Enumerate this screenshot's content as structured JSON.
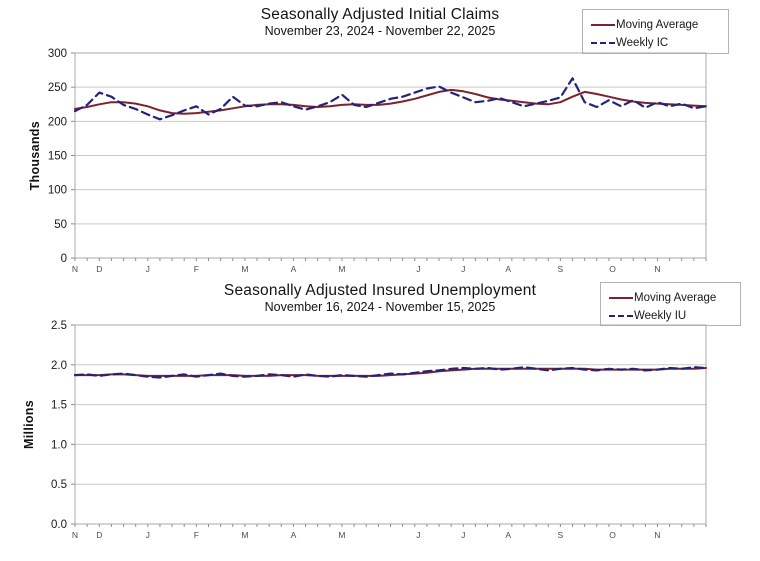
{
  "page": {
    "background": "#ffffff"
  },
  "colors": {
    "moving_average_line": "#7b232d",
    "weekly_line": "#23237d",
    "gridline": "#c9c9c9",
    "plot_border": "#a8a8a8",
    "tick": "#8c8c8c",
    "tick_label": "#1a1a1a",
    "month_label": "#4d4d4d"
  },
  "chart_data": [
    {
      "type": "line",
      "title": "Seasonally Adjusted Initial Claims",
      "subtitle": "November 23, 2024 - November 22, 2025",
      "ylabel": "Thousands",
      "ylim": [
        0,
        300
      ],
      "grid": "horizontal",
      "legend_position": "top-right",
      "yticks": [
        {
          "value": 0,
          "label": "0"
        },
        {
          "value": 50,
          "label": "50"
        },
        {
          "value": 100,
          "label": "100"
        },
        {
          "value": 150,
          "label": "150"
        },
        {
          "value": 200,
          "label": "200"
        },
        {
          "value": 250,
          "label": "250"
        },
        {
          "value": 300,
          "label": "300"
        }
      ],
      "month_labels": [
        {
          "label": "N",
          "week": 0
        },
        {
          "label": "D",
          "week": 2
        },
        {
          "label": "J",
          "week": 6
        },
        {
          "label": "F",
          "week": 10
        },
        {
          "label": "M",
          "week": 14
        },
        {
          "label": "A",
          "week": 18
        },
        {
          "label": "M",
          "week": 22
        },
        {
          "label": "J",
          "week": 28.3
        },
        {
          "label": "J",
          "week": 32
        },
        {
          "label": "A",
          "week": 35.7
        },
        {
          "label": "S",
          "week": 40
        },
        {
          "label": "O",
          "week": 44.3
        },
        {
          "label": "N",
          "week": 48
        }
      ],
      "legend": [
        {
          "label": "Moving Average",
          "style": "solid",
          "color": "#7b232d"
        },
        {
          "label": "Weekly IC",
          "style": "dashed",
          "color": "#23237d"
        }
      ],
      "series": [
        {
          "name": "Moving Average",
          "style": "solid",
          "color": "#7b232d",
          "values": [
            218,
            221,
            225,
            228,
            228,
            226,
            222,
            216,
            212,
            211,
            212,
            214,
            216,
            219,
            222,
            224,
            225,
            225,
            224,
            222,
            221,
            222,
            224,
            225,
            224,
            224,
            226,
            229,
            233,
            238,
            243,
            246,
            244,
            240,
            235,
            232,
            230,
            228,
            226,
            225,
            228,
            236,
            243,
            240,
            236,
            232,
            229,
            227,
            226,
            225,
            224,
            223,
            222
          ]
        },
        {
          "name": "Weekly IC",
          "style": "dashed",
          "color": "#23237d",
          "values": [
            215,
            224,
            242,
            236,
            224,
            218,
            210,
            203,
            209,
            216,
            222,
            210,
            218,
            236,
            223,
            222,
            226,
            228,
            222,
            217,
            222,
            228,
            239,
            224,
            221,
            227,
            233,
            236,
            242,
            248,
            251,
            242,
            235,
            228,
            230,
            234,
            228,
            222,
            226,
            230,
            235,
            263,
            228,
            221,
            231,
            222,
            231,
            220,
            228,
            222,
            226,
            219,
            222
          ]
        }
      ]
    },
    {
      "type": "line",
      "title": "Seasonally Adjusted Insured Unemployment",
      "subtitle": "November 16, 2024 - November 15, 2025",
      "ylabel": "Millions",
      "ylim": [
        0,
        2.5
      ],
      "grid": "horizontal",
      "legend_position": "top-right",
      "yticks": [
        {
          "value": 0,
          "label": "0.0"
        },
        {
          "value": 0.5,
          "label": "0.5"
        },
        {
          "value": 1.0,
          "label": "1.0"
        },
        {
          "value": 1.5,
          "label": "1.5"
        },
        {
          "value": 2.0,
          "label": "2.0"
        },
        {
          "value": 2.5,
          "label": "2.5"
        }
      ],
      "month_labels": [
        {
          "label": "N",
          "week": 0
        },
        {
          "label": "D",
          "week": 2
        },
        {
          "label": "J",
          "week": 6
        },
        {
          "label": "F",
          "week": 10
        },
        {
          "label": "M",
          "week": 14
        },
        {
          "label": "A",
          "week": 18
        },
        {
          "label": "M",
          "week": 22
        },
        {
          "label": "J",
          "week": 28.3
        },
        {
          "label": "J",
          "week": 32
        },
        {
          "label": "A",
          "week": 35.7
        },
        {
          "label": "S",
          "week": 40
        },
        {
          "label": "O",
          "week": 44.3
        },
        {
          "label": "N",
          "week": 48
        }
      ],
      "legend": [
        {
          "label": "Moving Average",
          "style": "solid",
          "color": "#7b232d"
        },
        {
          "label": "Weekly IU",
          "style": "dashed",
          "color": "#23237d"
        }
      ],
      "series": [
        {
          "name": "Moving Average",
          "style": "solid",
          "color": "#7b232d",
          "values": [
            1.87,
            1.87,
            1.87,
            1.88,
            1.88,
            1.87,
            1.86,
            1.86,
            1.86,
            1.86,
            1.86,
            1.87,
            1.87,
            1.87,
            1.86,
            1.86,
            1.86,
            1.87,
            1.87,
            1.87,
            1.86,
            1.86,
            1.86,
            1.86,
            1.86,
            1.86,
            1.87,
            1.88,
            1.89,
            1.9,
            1.92,
            1.93,
            1.94,
            1.95,
            1.95,
            1.95,
            1.95,
            1.95,
            1.95,
            1.95,
            1.95,
            1.95,
            1.95,
            1.94,
            1.94,
            1.94,
            1.94,
            1.94,
            1.94,
            1.95,
            1.95,
            1.95,
            1.96
          ]
        },
        {
          "name": "Weekly IU",
          "style": "dashed",
          "color": "#23237d",
          "values": [
            1.87,
            1.88,
            1.86,
            1.88,
            1.89,
            1.87,
            1.85,
            1.84,
            1.86,
            1.88,
            1.85,
            1.87,
            1.89,
            1.86,
            1.85,
            1.86,
            1.88,
            1.87,
            1.85,
            1.88,
            1.86,
            1.85,
            1.87,
            1.86,
            1.85,
            1.87,
            1.89,
            1.88,
            1.9,
            1.92,
            1.93,
            1.95,
            1.96,
            1.95,
            1.96,
            1.94,
            1.95,
            1.97,
            1.95,
            1.93,
            1.95,
            1.96,
            1.94,
            1.93,
            1.95,
            1.94,
            1.95,
            1.93,
            1.94,
            1.96,
            1.95,
            1.97,
            1.96
          ]
        }
      ]
    }
  ]
}
